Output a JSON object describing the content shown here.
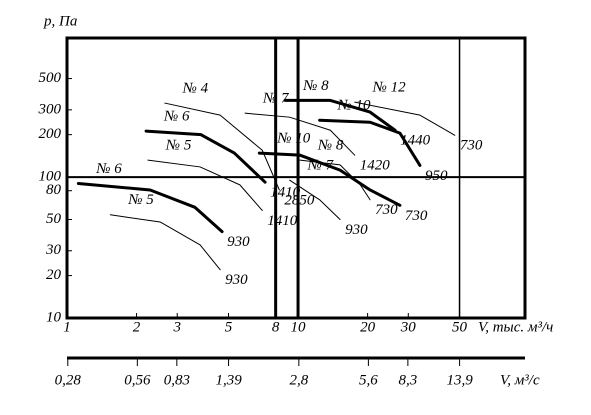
{
  "chart_data": {
    "type": "line",
    "y_label": "p,  Па",
    "x_label": "V, тыс. м³/ч",
    "x2_label": "V, м³/с",
    "log_x": true,
    "log_y": true,
    "xlim": [
      1,
      96
    ],
    "ylim": [
      10,
      970
    ],
    "xticks": [
      1,
      2,
      3,
      5,
      8,
      10,
      20,
      30,
      50
    ],
    "yticks": [
      10,
      20,
      30,
      50,
      80,
      100,
      200,
      300,
      500
    ],
    "x_grid_lines": [
      8,
      10,
      50
    ],
    "y_grid_lines": [
      100
    ],
    "x2lim": [
      0.2778,
      26.67
    ],
    "x2ticks": [
      {
        "value": 0.28,
        "label": "0,28"
      },
      {
        "value": 0.56,
        "label": "0,56"
      },
      {
        "value": 0.83,
        "label": "0,83"
      },
      {
        "value": 1.39,
        "label": "1,39"
      },
      {
        "value": 2.8,
        "label": "2,8"
      },
      {
        "value": 5.6,
        "label": "5,6"
      },
      {
        "value": 8.3,
        "label": "8,3"
      },
      {
        "value": 13.9,
        "label": "13,9"
      }
    ],
    "color": "#000000",
    "series": [
      {
        "name": "№ 4",
        "speed": "2850",
        "line_width": 1,
        "x": [
          2.65,
          4.6,
          7.0,
          8.3
        ],
        "values": [
          335,
          275,
          155,
          81
        ]
      },
      {
        "name": "№ 6",
        "speed": "1410",
        "line_width": 3,
        "x": [
          2.2,
          3.8,
          5.3,
          7.2
        ],
        "values": [
          212,
          200,
          148,
          92
        ]
      },
      {
        "name": "№ 5",
        "speed": "1410",
        "line_width": 1,
        "x": [
          2.24,
          3.77,
          5.6,
          7.0
        ],
        "values": [
          132,
          118,
          88,
          58
        ]
      },
      {
        "name": "№ 6",
        "speed": "930",
        "line_width": 3,
        "x": [
          1.12,
          2.29,
          3.58,
          4.69
        ],
        "values": [
          90,
          81,
          61,
          41
        ]
      },
      {
        "name": "№ 5",
        "speed": "930",
        "line_width": 1,
        "x": [
          1.54,
          2.53,
          3.77,
          4.6
        ],
        "values": [
          54,
          48,
          33,
          22
        ]
      },
      {
        "name": "№ 7",
        "speed": "1420",
        "line_width": 1,
        "x": [
          5.9,
          9.2,
          13.8,
          17.6
        ],
        "values": [
          284,
          266,
          215,
          143
        ]
      },
      {
        "name": "№ 7",
        "speed": "930",
        "line_width": 1,
        "x": [
          9.2,
          12.4,
          15.2
        ],
        "values": [
          95,
          69,
          50
        ]
      },
      {
        "name": "№ 8",
        "speed": "1440",
        "line_width": 3,
        "x": [
          8.8,
          13.8,
          20.5,
          26.3
        ],
        "values": [
          350,
          350,
          289,
          215
        ]
      },
      {
        "name": "№ 8",
        "speed": "730",
        "line_width": 1,
        "x": [
          10.2,
          15.2,
          18.6,
          20.5
        ],
        "values": [
          132,
          122,
          88,
          69
        ]
      },
      {
        "name": "№ 10",
        "speed": "950",
        "line_width": 3,
        "x": [
          12.4,
          20.5,
          27.6,
          33.7
        ],
        "values": [
          253,
          245,
          205,
          121
        ]
      },
      {
        "name": "№ 10",
        "speed": "730",
        "line_width": 3,
        "x": [
          6.8,
          10.2,
          15.2,
          20.5,
          27.6
        ],
        "values": [
          148,
          143,
          112,
          81,
          63
        ]
      },
      {
        "name": "№ 12",
        "speed": "730",
        "line_width": 1,
        "x": [
          17.6,
          33.7,
          47.7
        ],
        "values": [
          340,
          275,
          198
        ]
      }
    ]
  }
}
